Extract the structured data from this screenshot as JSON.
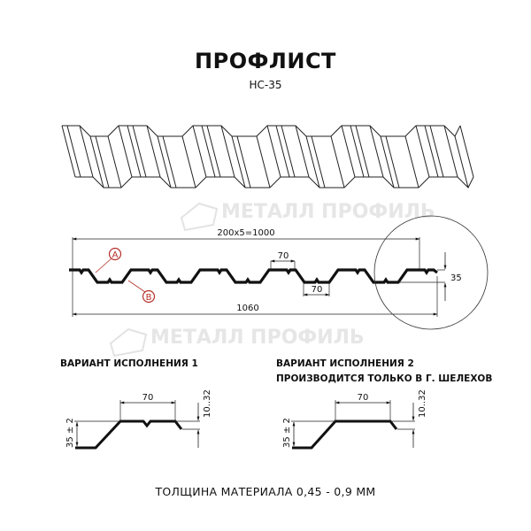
{
  "title": "ПРОФЛИСТ",
  "subtitle": "НС-35",
  "watermark": "МЕТАЛЛ ПРОФИЛЬ",
  "profile": {
    "dim_pitch": "200x5=1000",
    "dim_total": "1060",
    "dim_top": "70",
    "dim_bottom": "70",
    "dim_height": "35",
    "label_a": "A",
    "label_b": "B",
    "label_color": "#b5302a"
  },
  "variant1": {
    "heading": "ВАРИАНТ ИСПОЛНЕНИЯ 1",
    "dim_width": "70",
    "dim_height": "35 ± 2",
    "dim_edge": "10..32"
  },
  "variant2": {
    "heading_line1": "ВАРИАНТ ИСПОЛНЕНИЯ 2",
    "heading_line2": "ПРОИЗВОДИТСЯ ТОЛЬКО В Г. ШЕЛЕХОВ",
    "dim_width": "70",
    "dim_height": "35 ± 2",
    "dim_edge": "10..32"
  },
  "footer": "ТОЛЩИНА МАТЕРИАЛА 0,45 - 0,9 ММ"
}
